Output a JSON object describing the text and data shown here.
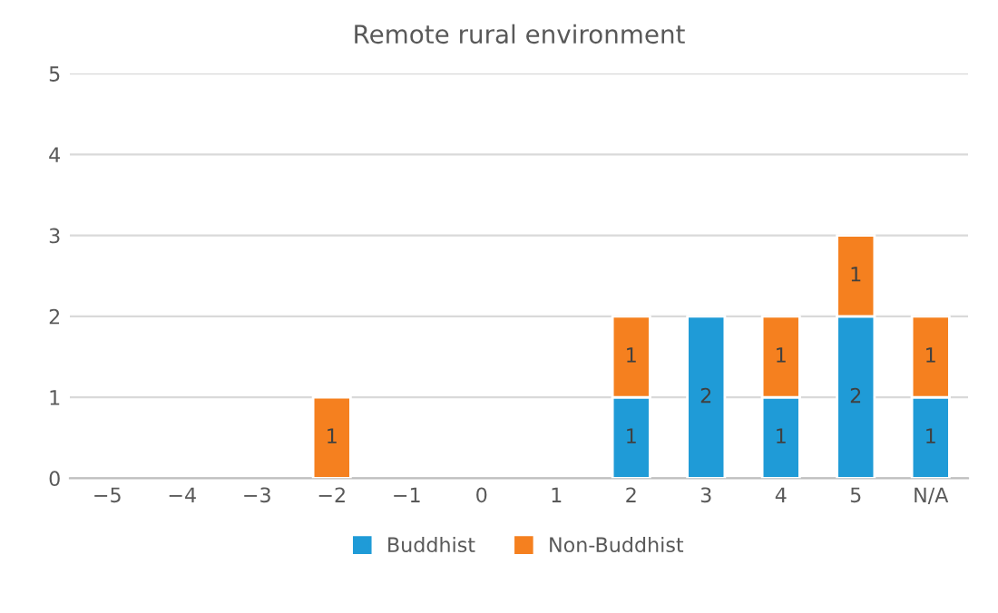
{
  "chart_data": {
    "type": "bar",
    "title": "Remote rural environment",
    "stacked": true,
    "categories": [
      "−5",
      "−4",
      "−3",
      "−2",
      "−1",
      "0",
      "1",
      "2",
      "3",
      "4",
      "5",
      "N/A"
    ],
    "series": [
      {
        "name": "Buddhist",
        "color": "#1f9bd7",
        "values": [
          null,
          null,
          null,
          null,
          null,
          null,
          null,
          1,
          2,
          1,
          2,
          1
        ]
      },
      {
        "name": "Non-Buddhist",
        "color": "#f5801f",
        "values": [
          null,
          null,
          null,
          1,
          null,
          null,
          null,
          1,
          null,
          1,
          1,
          1
        ]
      }
    ],
    "ylim": [
      0,
      5
    ],
    "yticks": [
      0,
      1,
      2,
      3,
      4,
      5
    ],
    "grid": "y",
    "legend": "bottom",
    "data_labels": true
  }
}
